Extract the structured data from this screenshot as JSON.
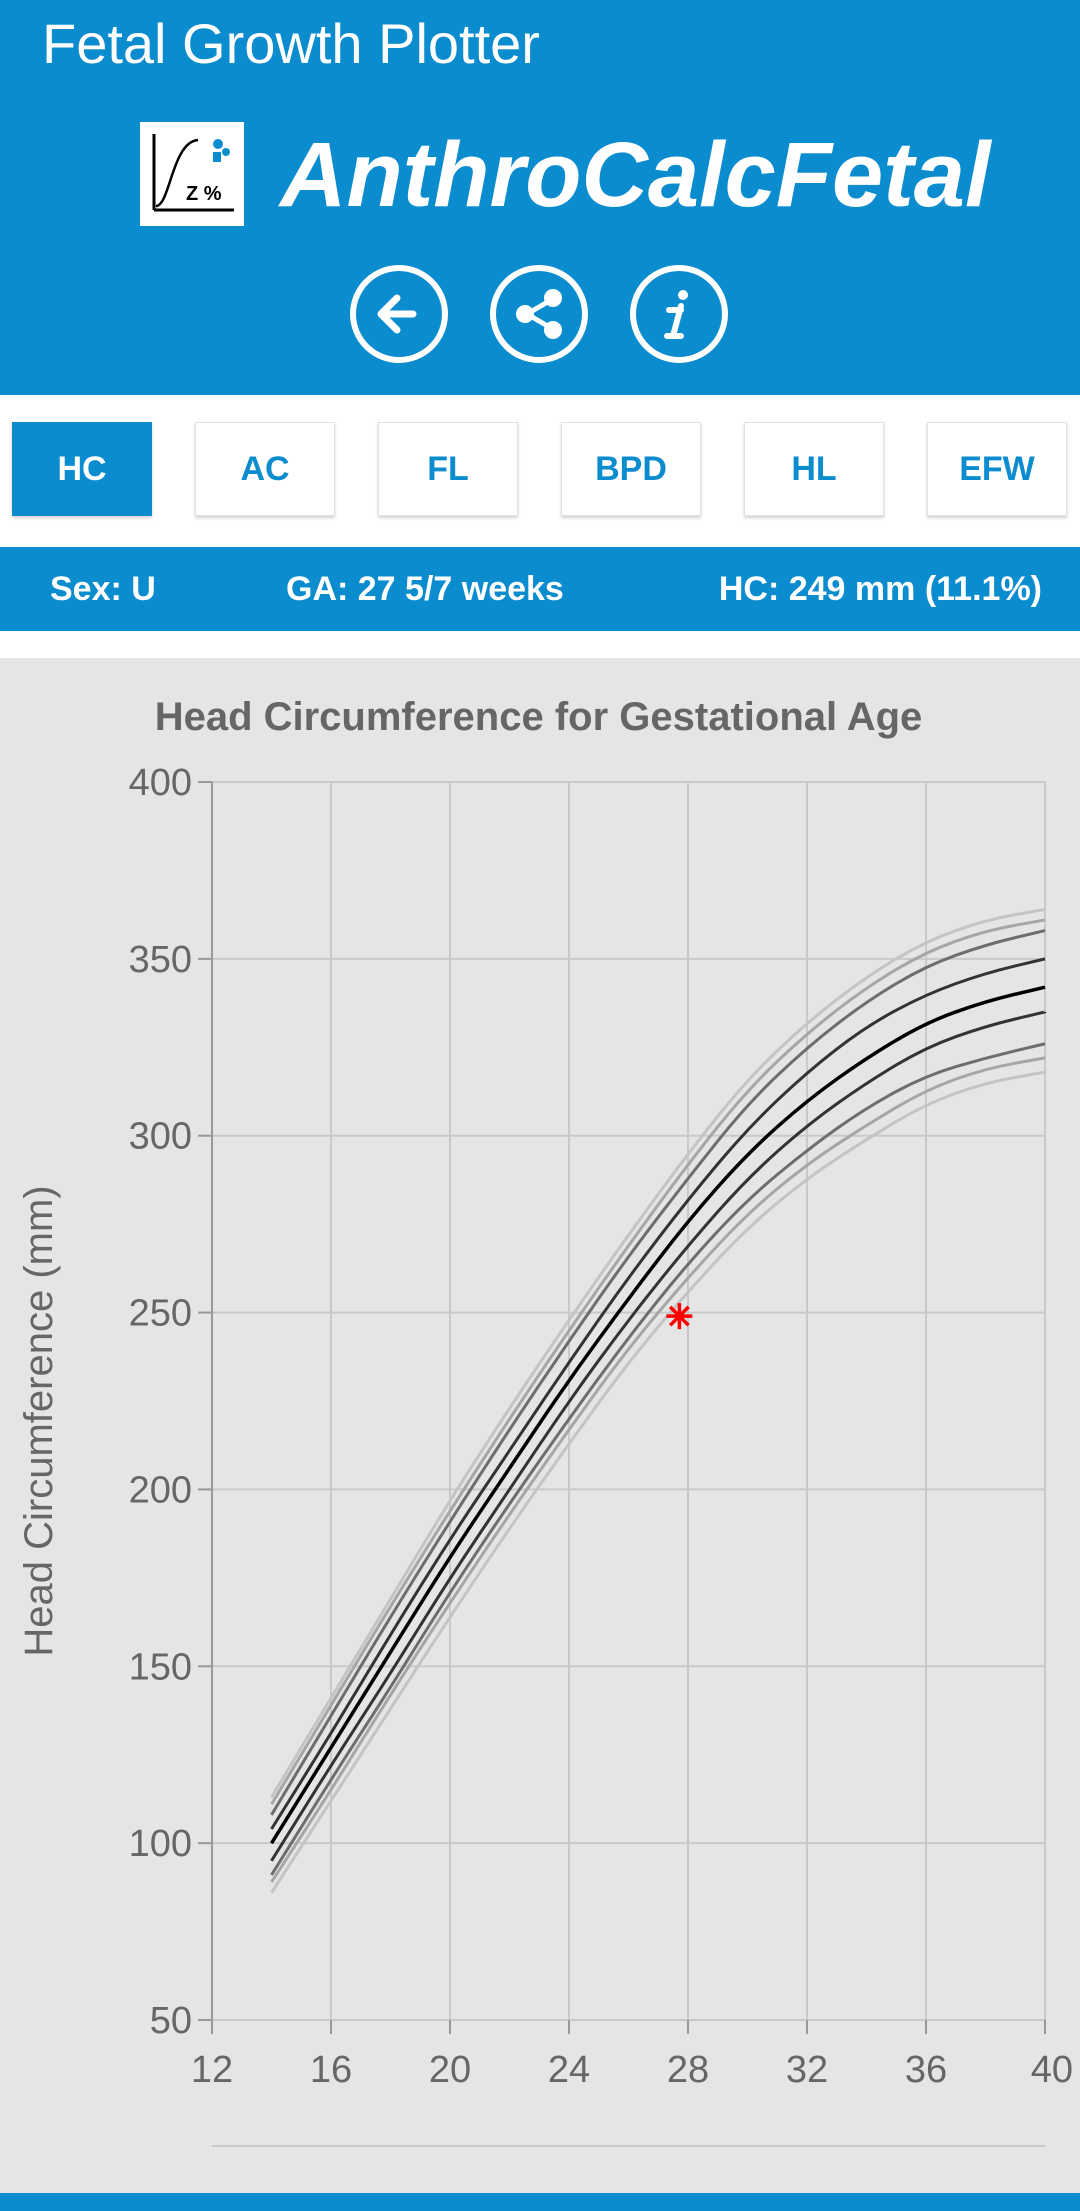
{
  "header": {
    "app_title": "Fetal Growth Plotter",
    "brand": "AnthroCalcFetal",
    "logo_text": "Z %",
    "buttons": {
      "back": "back-arrow-icon",
      "share": "share-icon",
      "info": "info-icon"
    }
  },
  "tabs": [
    {
      "label": "HC",
      "active": true
    },
    {
      "label": "AC",
      "active": false
    },
    {
      "label": "FL",
      "active": false
    },
    {
      "label": "BPD",
      "active": false
    },
    {
      "label": "HL",
      "active": false
    },
    {
      "label": "EFW",
      "active": false
    }
  ],
  "info": {
    "sex": "Sex: U",
    "ga": "GA: 27 5/7  weeks",
    "measure": "HC: 249 mm (11.1%)"
  },
  "colors": {
    "primary": "#0b8ccf",
    "chart_bg": "#e5e5e5",
    "point": "#ff0000"
  },
  "chart_data": {
    "type": "line",
    "title": "Head Circumference for Gestational Age",
    "xlabel": "",
    "ylabel": "Head Circumference (mm)",
    "xlim": [
      12,
      40
    ],
    "ylim": [
      50,
      400
    ],
    "xticks": [
      12,
      16,
      20,
      24,
      28,
      32,
      36,
      40
    ],
    "yticks": [
      50,
      100,
      150,
      200,
      250,
      300,
      350,
      400
    ],
    "grid": true,
    "series": [
      {
        "x": [
          14,
          16,
          18,
          20,
          22,
          24,
          26,
          28,
          30,
          32,
          34,
          36,
          38,
          40
        ],
        "values": [
          86,
          112,
          138,
          164,
          189,
          213,
          236,
          256,
          274,
          288,
          299,
          309,
          315,
          318
        ]
      },
      {
        "x": [
          14,
          16,
          18,
          20,
          22,
          24,
          26,
          28,
          30,
          32,
          34,
          36,
          38,
          40
        ],
        "values": [
          89,
          115,
          142,
          168,
          193,
          217,
          240,
          260,
          278,
          292,
          303,
          313,
          319,
          322
        ]
      },
      {
        "x": [
          14,
          16,
          18,
          20,
          22,
          24,
          26,
          28,
          30,
          32,
          34,
          36,
          38,
          40
        ],
        "values": [
          91,
          118,
          144,
          171,
          196,
          220,
          243,
          264,
          282,
          296,
          308,
          317,
          322,
          326
        ]
      },
      {
        "x": [
          14,
          16,
          18,
          20,
          22,
          24,
          26,
          28,
          30,
          32,
          34,
          36,
          38,
          40
        ],
        "values": [
          95,
          122,
          148,
          175,
          200,
          225,
          248,
          269,
          288,
          303,
          315,
          325,
          331,
          335
        ]
      },
      {
        "x": [
          14,
          16,
          18,
          20,
          22,
          24,
          26,
          28,
          30,
          32,
          34,
          36,
          38,
          40
        ],
        "values": [
          100,
          127,
          154,
          181,
          206,
          231,
          254,
          276,
          295,
          310,
          322,
          332,
          338,
          342
        ]
      },
      {
        "x": [
          14,
          16,
          18,
          20,
          22,
          24,
          26,
          28,
          30,
          32,
          34,
          36,
          38,
          40
        ],
        "values": [
          104,
          131,
          159,
          186,
          211,
          236,
          260,
          282,
          302,
          318,
          331,
          340,
          346,
          350
        ]
      },
      {
        "x": [
          14,
          16,
          18,
          20,
          22,
          24,
          26,
          28,
          30,
          32,
          34,
          36,
          38,
          40
        ],
        "values": [
          108,
          136,
          164,
          191,
          217,
          242,
          266,
          288,
          309,
          325,
          338,
          348,
          354,
          358
        ]
      },
      {
        "x": [
          14,
          16,
          18,
          20,
          22,
          24,
          26,
          28,
          30,
          32,
          34,
          36,
          38,
          40
        ],
        "values": [
          111,
          139,
          167,
          194,
          220,
          245,
          269,
          292,
          313,
          329,
          342,
          352,
          358,
          361
        ]
      },
      {
        "x": [
          14,
          16,
          18,
          20,
          22,
          24,
          26,
          28,
          30,
          32,
          34,
          36,
          38,
          40
        ],
        "values": [
          113,
          141,
          169,
          197,
          223,
          248,
          272,
          295,
          316,
          332,
          345,
          355,
          361,
          364
        ]
      }
    ],
    "series_colors": [
      "#c4c4c4",
      "#a6a6a6",
      "#6d6d6d",
      "#333333",
      "#000000",
      "#333333",
      "#6d6d6d",
      "#a6a6a6",
      "#c4c4c4"
    ],
    "points": [
      {
        "x": 27.71,
        "y": 249
      }
    ]
  }
}
